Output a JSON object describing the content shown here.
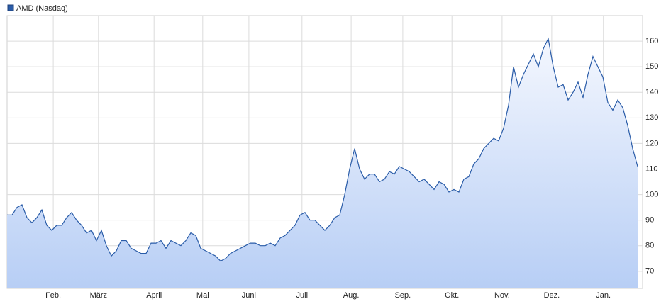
{
  "chart_data": {
    "type": "area",
    "series": [
      {
        "name": "AMD (Nasdaq)",
        "color": "#2a5ca8",
        "values": [
          92,
          92,
          95,
          96,
          91,
          89,
          91,
          94,
          88,
          86,
          88,
          88,
          91,
          93,
          90,
          88,
          85,
          86,
          82,
          86,
          80,
          76,
          78,
          82,
          82,
          79,
          78,
          77,
          77,
          81,
          81,
          82,
          79,
          82,
          81,
          80,
          82,
          85,
          84,
          79,
          78,
          77,
          76,
          74,
          75,
          77,
          78,
          79,
          80,
          81,
          81,
          80,
          80,
          81,
          80,
          83,
          84,
          86,
          88,
          92,
          93,
          90,
          90,
          88,
          86,
          88,
          91,
          92,
          100,
          110,
          118,
          110,
          106,
          108,
          108,
          105,
          106,
          109,
          108,
          111,
          110,
          109,
          107,
          105,
          106,
          104,
          102,
          105,
          104,
          101,
          102,
          101,
          106,
          107,
          112,
          114,
          118,
          120,
          122,
          121,
          126,
          135,
          150,
          142,
          147,
          151,
          155,
          150,
          157,
          161,
          150,
          142,
          143,
          137,
          140,
          144,
          138,
          147,
          154,
          150,
          146,
          136,
          133,
          137,
          134,
          127,
          118,
          111
        ]
      }
    ],
    "xlim": [
      0,
      127
    ],
    "xticks": [
      {
        "value": 9.3,
        "label": "Feb."
      },
      {
        "value": 18.4,
        "label": "März"
      },
      {
        "value": 29.6,
        "label": "April"
      },
      {
        "value": 39.4,
        "label": "Mai"
      },
      {
        "value": 48.7,
        "label": "Juni"
      },
      {
        "value": 59.4,
        "label": "Juli"
      },
      {
        "value": 69.3,
        "label": "Aug."
      },
      {
        "value": 79.7,
        "label": "Sep."
      },
      {
        "value": 89.6,
        "label": "Okt."
      },
      {
        "value": 99.7,
        "label": "Nov."
      },
      {
        "value": 109.7,
        "label": "Dez."
      },
      {
        "value": 120.1,
        "label": "Jan."
      }
    ],
    "ylim": [
      63.3,
      170
    ],
    "yticks": [
      70,
      80,
      90,
      100,
      110,
      120,
      130,
      140,
      150,
      160
    ],
    "grid": true
  }
}
